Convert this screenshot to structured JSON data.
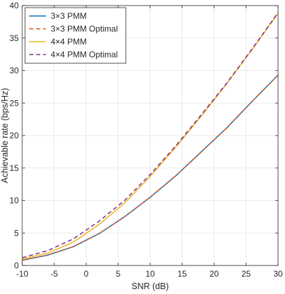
{
  "chart_data": {
    "type": "line",
    "xlabel": "SNR (dB)",
    "ylabel": "Achievable rate (bps/Hz)",
    "xlim": [
      -10,
      30
    ],
    "ylim": [
      0,
      40
    ],
    "xticks": [
      -10,
      -5,
      0,
      5,
      10,
      15,
      20,
      25,
      30
    ],
    "yticks": [
      0,
      5,
      10,
      15,
      20,
      25,
      30,
      35,
      40
    ],
    "grid": true,
    "legend_position": "top-left",
    "series": [
      {
        "name": "3×3 PMM",
        "color": "#0072BD",
        "style": "solid",
        "x": [
          -10,
          -6,
          -2,
          2,
          6,
          10,
          14,
          18,
          22,
          26,
          30
        ],
        "y": [
          0.8,
          1.6,
          2.9,
          4.9,
          7.5,
          10.5,
          13.8,
          17.5,
          21.2,
          25.3,
          29.3
        ]
      },
      {
        "name": "3×3 PMM Optimal",
        "color": "#D95319",
        "style": "dashed",
        "x": [
          -10,
          -6,
          -2,
          2,
          6,
          10,
          14,
          18,
          22,
          26,
          30
        ],
        "y": [
          0.8,
          1.6,
          2.9,
          4.9,
          7.5,
          10.5,
          13.8,
          17.5,
          21.2,
          25.3,
          29.3
        ]
      },
      {
        "name": "4×4 PMM",
        "color": "#EDB120",
        "style": "solid",
        "x": [
          -10,
          -6,
          -2,
          2,
          6,
          10,
          14,
          18,
          22,
          26,
          30
        ],
        "y": [
          1.0,
          1.9,
          3.6,
          6.3,
          9.6,
          13.7,
          18.2,
          23.0,
          28.0,
          33.3,
          38.8
        ]
      },
      {
        "name": "4×4 PMM Optimal",
        "color": "#7E2F8E",
        "style": "dashed",
        "x": [
          -10,
          -6,
          -2,
          2,
          6,
          10,
          14,
          18,
          22,
          26,
          30
        ],
        "y": [
          1.2,
          2.3,
          4.1,
          6.8,
          10.0,
          14.0,
          18.4,
          23.2,
          28.1,
          33.4,
          38.9
        ]
      }
    ]
  }
}
